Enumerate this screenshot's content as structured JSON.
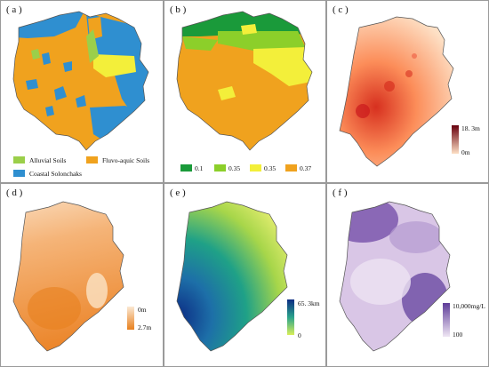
{
  "panels": [
    {
      "id": "a",
      "label": "( a )",
      "legend": [
        {
          "text": "Alluvial Soils",
          "color": "#9bcf4a"
        },
        {
          "text": "Fluvo-aquic Soils",
          "color": "#f0a21e"
        },
        {
          "text": "Coastal Solonchaks",
          "color": "#2f8fd0"
        }
      ]
    },
    {
      "id": "b",
      "label": "( b )",
      "legend": [
        {
          "text": "0.1",
          "color": "#1a9a3a"
        },
        {
          "text": "0.35",
          "color": "#8ccf2a"
        },
        {
          "text": "0.35",
          "color": "#f3ef3a"
        },
        {
          "text": "0.37",
          "color": "#f0a21e"
        }
      ]
    },
    {
      "id": "c",
      "label": "( c )",
      "ramp_top": "18. 3m",
      "ramp_bottom": "0m"
    },
    {
      "id": "d",
      "label": "( d )",
      "ramp_top": "0m",
      "ramp_bottom": "2.7m"
    },
    {
      "id": "e",
      "label": "( e )",
      "ramp_top": "65. 3km",
      "ramp_bottom": "0"
    },
    {
      "id": "f",
      "label": "( f )",
      "ramp_top": "10,000mg/L",
      "ramp_bottom": "100"
    }
  ]
}
